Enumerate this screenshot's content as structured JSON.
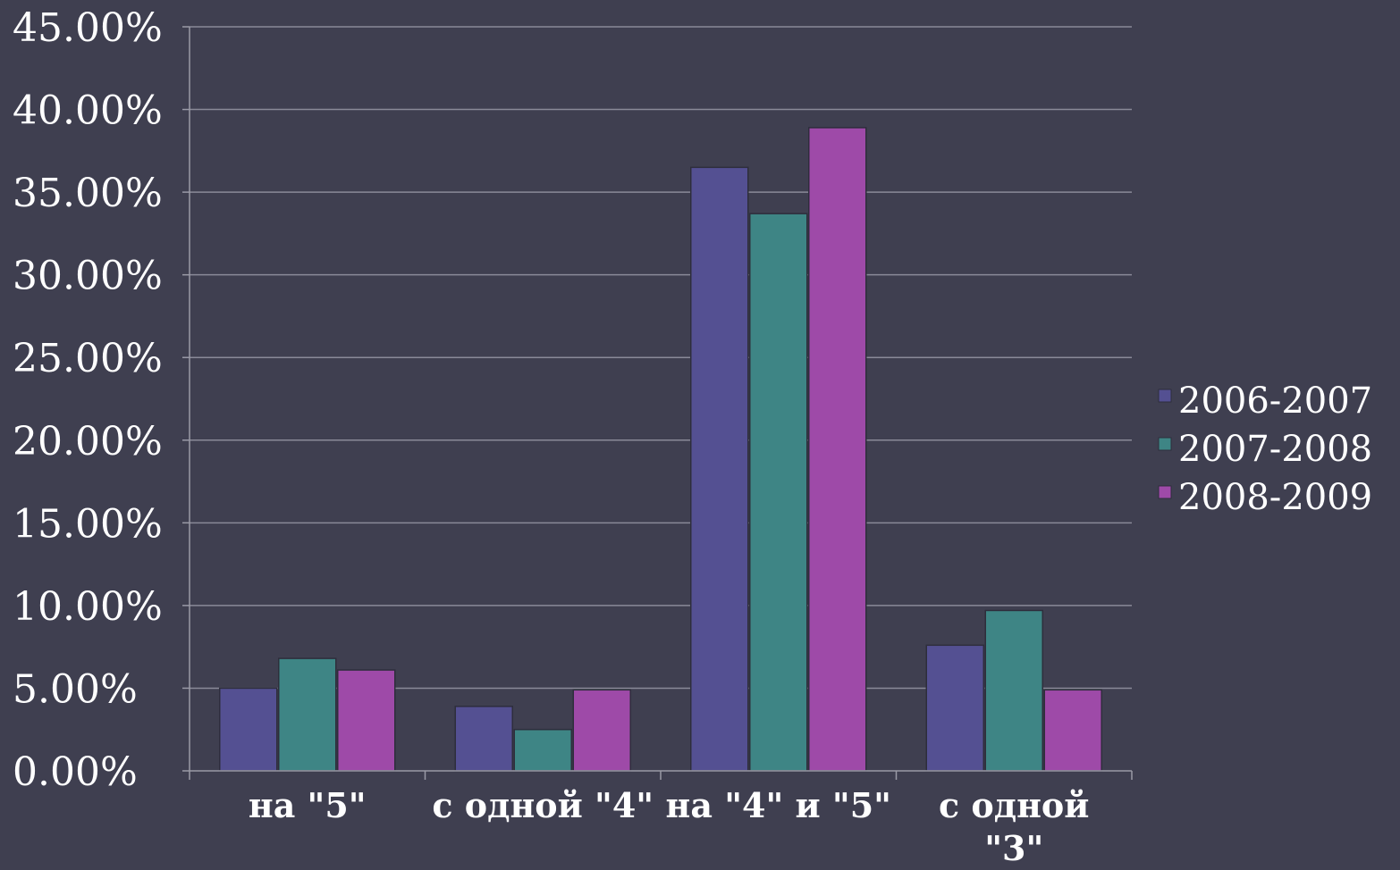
{
  "chart_data": {
    "type": "bar",
    "categories": [
      "на \"5\"",
      "с одной \"4\"",
      "на \"4\" и \"5\"",
      "с одной \"3\""
    ],
    "category_lines": [
      [
        "на \"5\""
      ],
      [
        "с одной \"4\""
      ],
      [
        "на \"4\" и \"5\""
      ],
      [
        "с одной",
        "\"3\""
      ]
    ],
    "series": [
      {
        "name": "2006-2007",
        "values": [
          5.0,
          3.9,
          36.5,
          7.6
        ],
        "color": "#545092"
      },
      {
        "name": "2007-2008",
        "values": [
          6.8,
          2.5,
          33.7,
          9.7
        ],
        "color": "#3e8585"
      },
      {
        "name": "2008-2009",
        "values": [
          6.1,
          4.9,
          38.9,
          4.9
        ],
        "color": "#9e4aa8"
      }
    ],
    "ylim": [
      0,
      45
    ],
    "yticks": [
      0,
      5,
      10,
      15,
      20,
      25,
      30,
      35,
      40,
      45
    ],
    "ytick_labels": [
      "0.00%",
      "5.00%",
      "10.00%",
      "15.00%",
      "20.00%",
      "25.00%",
      "30.00%",
      "35.00%",
      "40.00%",
      "45.00%"
    ],
    "grid": true,
    "legend_position": "right",
    "background_color": "#3f3f50"
  }
}
